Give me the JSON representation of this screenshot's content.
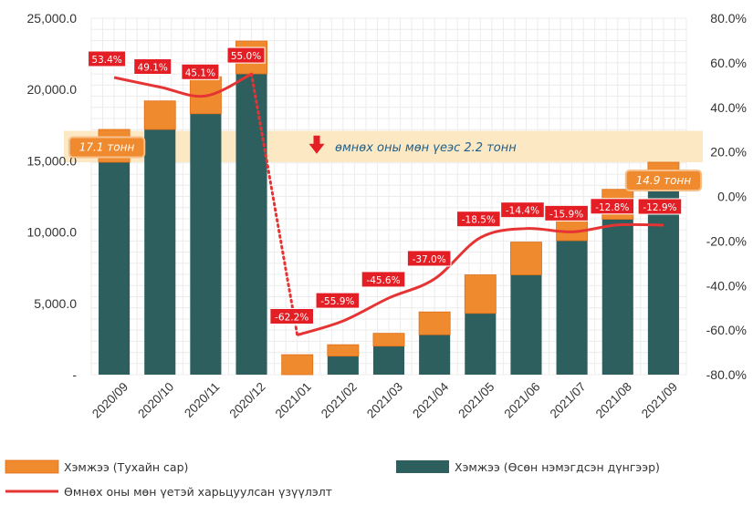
{
  "chart_data": {
    "type": "bar",
    "categories": [
      "2020/09",
      "2020/10",
      "2020/11",
      "2020/12",
      "2021/01",
      "2021/02",
      "2021/03",
      "2021/04",
      "2021/05",
      "2021/06",
      "2021/07",
      "2021/08",
      "2021/09"
    ],
    "series": [
      {
        "name": "Хэмжээ (Өсөн нэмэгдсэн дүнгээр)",
        "kind": "bar-stack-base",
        "color": "#2d5f5f",
        "values": [
          14900,
          17200,
          18300,
          21100,
          0,
          1300,
          2000,
          2800,
          4300,
          7000,
          9400,
          10900,
          13000
        ]
      },
      {
        "name": "Хэмжээ (Тухайн сар)",
        "kind": "bar-stack-top",
        "color": "#f08a2e",
        "values": [
          2300,
          2000,
          2600,
          2300,
          1400,
          800,
          900,
          1600,
          2700,
          2300,
          1700,
          2100,
          1900
        ]
      },
      {
        "name": "Өмнөх оны мөн үетэй харьцуулсан үзүүлэлт",
        "kind": "line-right-axis",
        "color": "#e63333",
        "values": [
          53.4,
          49.1,
          45.1,
          55.0,
          -62.2,
          -55.9,
          -45.6,
          -37.0,
          -18.5,
          -14.4,
          -15.9,
          -12.8,
          -12.9
        ],
        "labels": [
          "53.4%",
          "49.1%",
          "45.1%",
          "55.0%",
          "-62.2%",
          "-55.9%",
          "-45.6%",
          "-37.0%",
          "-18.5%",
          "-14.4%",
          "-15.9%",
          "-12.8%",
          "-12.9%"
        ]
      }
    ],
    "y_left": {
      "ylim": [
        0,
        25000
      ],
      "ticks": [
        0,
        5000,
        10000,
        15000,
        20000,
        25000
      ],
      "tick_labels": [
        "-",
        "5,000.0",
        "10,000.0",
        "15,000.0",
        "20,000.0",
        "25,000.0"
      ]
    },
    "y_right": {
      "ylim": [
        -80,
        80
      ],
      "ticks": [
        -80,
        -60,
        -40,
        -20,
        0,
        20,
        40,
        60,
        80
      ],
      "tick_labels": [
        "-80.0%",
        "-60.0%",
        "-40.0%",
        "-20.0%",
        "0.0%",
        "20.0%",
        "40.0%",
        "60.0%",
        "80.0%"
      ]
    },
    "band": {
      "from": 14900,
      "to": 17100,
      "color": "#fce8c3",
      "text": "өмнөх оны мөн үеэс 2.2 тонн"
    },
    "callouts": [
      {
        "text": "17.1 тонн",
        "category_index": 0
      },
      {
        "text": "14.9 тонн",
        "category_index": 12
      }
    ],
    "grid": true,
    "legend_position": "bottom",
    "title": "",
    "xlabel": "",
    "ylabel": ""
  }
}
